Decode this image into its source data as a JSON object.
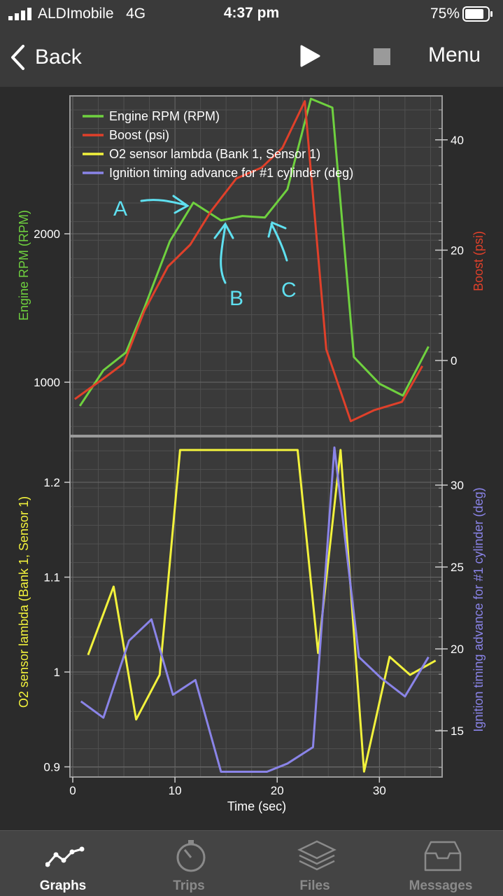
{
  "status": {
    "carrier": "ALDImobile",
    "network": "4G",
    "time": "4:37 pm",
    "battery": "75%"
  },
  "nav": {
    "back_label": "Back",
    "menu_label": "Menu"
  },
  "tabs": [
    {
      "label": "Graphs",
      "icon": "graph-icon",
      "active": true
    },
    {
      "label": "Trips",
      "icon": "stopwatch-icon",
      "active": false
    },
    {
      "label": "Files",
      "icon": "layers-icon",
      "active": false
    },
    {
      "label": "Messages",
      "icon": "inbox-icon",
      "active": false
    }
  ],
  "colors": {
    "rpm": "#6fd13f",
    "boost": "#e0402a",
    "lambda": "#f2f23c",
    "ignition": "#8a84e8",
    "annotation": "#5fe0f0"
  },
  "chart_data": [
    {
      "type": "line",
      "xlabel": "Time (sec)",
      "ylabel": "Engine RPM (RPM)",
      "ylabel_right": "Boost (psi)",
      "xlim": [
        0,
        36
      ],
      "ylim": [
        780,
        2920
      ],
      "ylim_right": [
        -12,
        47
      ],
      "x_ticks": [
        "0",
        "10",
        "20",
        "30"
      ],
      "y_ticks": [
        1000,
        2000
      ],
      "y_ticks_right": [
        0,
        20,
        40
      ],
      "y_tick_labels": [
        "1000",
        "2000"
      ],
      "y_tick_labels_right": [
        "0",
        "20",
        "40"
      ],
      "grid": true,
      "legend_position": "top-left",
      "series": [
        {
          "name": "Engine RPM (RPM)",
          "axis": "left",
          "color": "#6fd13f",
          "x": [
            0.7,
            3,
            5.2,
            7,
            9.5,
            11.8,
            14.5,
            16.6,
            18.8,
            21,
            23.3,
            25.4,
            27.5,
            30,
            32.3,
            34.8
          ],
          "values": [
            840,
            1080,
            1200,
            1500,
            1950,
            2210,
            2090,
            2120,
            2110,
            2300,
            2910,
            2850,
            1170,
            990,
            910,
            1240
          ]
        },
        {
          "name": "Boost (psi)",
          "axis": "left",
          "color": "#e0402a",
          "x": [
            0.2,
            3.2,
            5,
            7,
            9.3,
            11.5,
            13.5,
            16,
            18.5,
            20.5,
            22.7,
            24.8,
            27.2,
            29.5,
            32.2,
            34.2
          ],
          "values": [
            -7,
            -3,
            -0.5,
            9,
            17,
            21,
            27,
            33,
            35,
            38.5,
            47,
            2,
            -11,
            -9,
            -7.5,
            -1
          ]
        },
        {
          "name": "O2 sensor lambda (Bank 1, Sensor 1)",
          "axis": "none",
          "color": "#f2f23c",
          "x": [],
          "values": []
        },
        {
          "name": "Ignition timing advance for #1 cylinder (deg)",
          "axis": "none",
          "color": "#8a84e8",
          "x": [],
          "values": []
        }
      ],
      "annotations": [
        {
          "label": "A",
          "x": 5.2,
          "y": 2180
        },
        {
          "label": "B",
          "x": 16,
          "y": 1550
        },
        {
          "label": "C",
          "x": 21.2,
          "y": 1570
        }
      ]
    },
    {
      "type": "line",
      "xlabel": "Time (sec)",
      "ylabel": "O2 sensor lambda (Bank 1, Sensor 1)",
      "ylabel_right": "Ignition timing advance for #1 cylinder (deg)",
      "xlim": [
        0,
        36
      ],
      "ylim": [
        0.89,
        1.245
      ],
      "ylim_right": [
        12.3,
        33.2
      ],
      "x_ticks": [
        "0",
        "10",
        "20",
        "30"
      ],
      "y_ticks": [
        0.9,
        1,
        1.1,
        1.2
      ],
      "y_ticks_right": [
        15,
        20,
        25,
        30
      ],
      "y_tick_labels": [
        "0.9",
        "1",
        "1.1",
        "1.2"
      ],
      "y_tick_labels_right": [
        "15",
        "20",
        "25",
        "30"
      ],
      "grid": true,
      "series": [
        {
          "name": "O2 sensor lambda (Bank 1, Sensor 1)",
          "axis": "left",
          "color": "#f2f23c",
          "x": [
            1.5,
            4,
            6.2,
            8.5,
            10.5,
            22,
            24,
            26.2,
            28.5,
            31,
            33,
            35.5
          ],
          "values": [
            1.018,
            1.09,
            0.95,
            0.997,
            1.234,
            1.234,
            1.02,
            1.234,
            0.895,
            1.016,
            0.997,
            1.012
          ]
        },
        {
          "name": "Ignition timing advance for #1 cylinder (deg)",
          "axis": "right",
          "color": "#8a84e8",
          "x": [
            0.8,
            3,
            5.5,
            7.7,
            9.8,
            12,
            14.5,
            17,
            19,
            21,
            23.5,
            25.6,
            28,
            30.2,
            32.5,
            34.8
          ],
          "values": [
            16.8,
            15.8,
            20.5,
            21.8,
            17.2,
            18.1,
            12.5,
            12.5,
            12.5,
            13,
            14,
            32.3,
            19.5,
            18.2,
            17.1,
            19.5
          ]
        }
      ]
    }
  ]
}
